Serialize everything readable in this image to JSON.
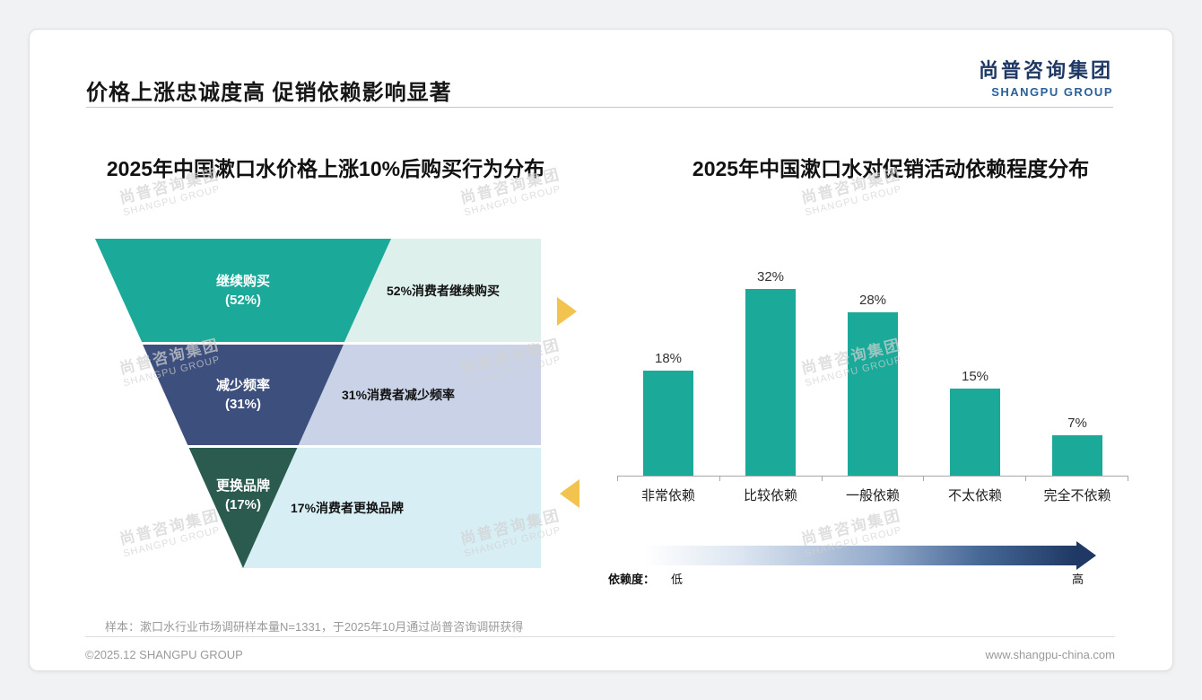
{
  "page": {
    "main_title": "价格上涨忠诚度高 促销依赖影响显著",
    "logo_cn": "尚普咨询集团",
    "logo_en": "SHANGPU GROUP",
    "watermark_cn": "尚普咨询集团",
    "watermark_en": "SHANGPU GROUP",
    "sample_note": "样本：漱口水行业市场调研样本量N=1331，于2025年10月通过尚普咨询调研获得",
    "footer_left": "©2025.12 SHANGPU GROUP",
    "footer_right": "www.shangpu-china.com"
  },
  "colors": {
    "teal": "#1BA99A",
    "navy": "#3D4F7D",
    "green": "#2B5B4F",
    "box-teal": "#DDF0EC",
    "box-lavender": "#C9D2E6",
    "box-cyan": "#D7EEF5",
    "arrow-yellow": "#F2C34F",
    "brand": "#1F3864"
  },
  "chart_data": [
    {
      "type": "funnel",
      "title": "2025年中国漱口水价格上涨10%后购买行为分布",
      "levels": [
        {
          "label": "继续购买",
          "pct": "(52%)",
          "value": 52,
          "annotation": "52%消费者继续购买",
          "color": "#1BA99A",
          "box_color": "#DDF0EC"
        },
        {
          "label": "减少频率",
          "pct": "(31%)",
          "value": 31,
          "annotation": "31%消费者减少频率",
          "color": "#3D4F7D",
          "box_color": "#C9D2E6"
        },
        {
          "label": "更换品牌",
          "pct": "(17%)",
          "value": 17,
          "annotation": "17%消费者更换品牌",
          "color": "#2B5B4F",
          "box_color": "#D7EEF5"
        }
      ]
    },
    {
      "type": "bar",
      "title": "2025年中国漱口水对促销活动依赖程度分布",
      "categories": [
        "非常依赖",
        "比较依赖",
        "一般依赖",
        "不太依赖",
        "完全不依赖"
      ],
      "values": [
        18,
        32,
        28,
        15,
        7
      ],
      "value_labels": [
        "18%",
        "32%",
        "28%",
        "15%",
        "7%"
      ],
      "bar_color": "#1BA99A",
      "ylim": [
        0,
        35
      ],
      "grid": false,
      "axis": {
        "label": "依赖度：",
        "low": "低",
        "high": "高"
      }
    }
  ]
}
